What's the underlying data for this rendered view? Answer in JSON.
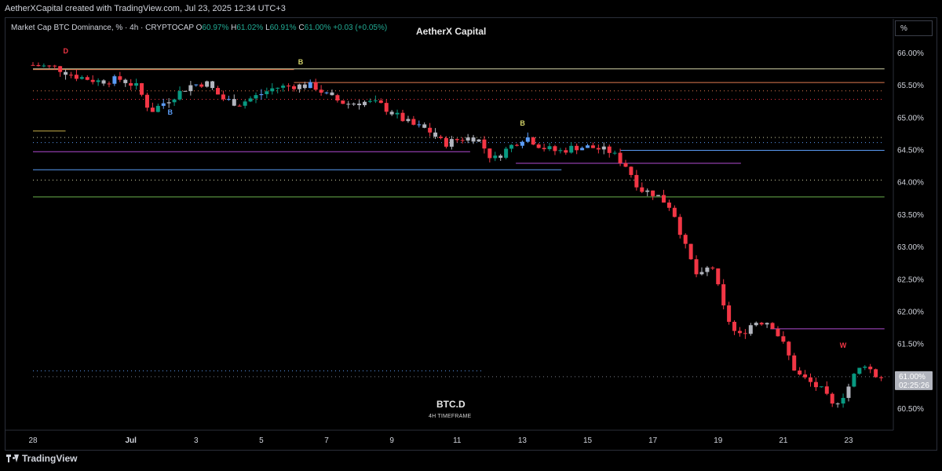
{
  "header": {
    "credit": "AetherXCapital created with TradingView.com, Jul 23, 2025 12:34 UTC+3"
  },
  "legend": {
    "title": "Market Cap BTC Dominance, % · 4h · CRYPTOCAP",
    "o_label": "O",
    "o_value": "60.97%",
    "h_label": "H",
    "h_value": "61.02%",
    "l_label": "L",
    "l_value": "60.91%",
    "c_label": "C",
    "c_value": "61.00%",
    "change": "+0.03 (+0.05%)"
  },
  "brand": "AetherX Capital",
  "unit_button": "%",
  "symbol": "BTC.D",
  "timeframe": "4H TIMEFRAME",
  "footer": {
    "logo": "TradingView"
  },
  "price_tag": {
    "value": "61.00%",
    "countdown": "02:25:26"
  },
  "colors": {
    "up": "#089981",
    "down": "#f23645",
    "neutral": "#b2b5be",
    "blue": "#5b9cf6"
  },
  "chart_data": {
    "type": "candlestick",
    "y_ticks": [
      "66.00%",
      "65.50%",
      "65.00%",
      "64.50%",
      "64.00%",
      "63.50%",
      "63.00%",
      "62.50%",
      "62.00%",
      "61.50%",
      "60.50%"
    ],
    "y_tick_values": [
      66.0,
      65.5,
      65.0,
      64.5,
      64.0,
      63.5,
      63.0,
      62.5,
      62.0,
      61.5,
      60.5
    ],
    "x_ticks": [
      "28",
      "Jul",
      "3",
      "5",
      "7",
      "9",
      "11",
      "13",
      "15",
      "17",
      "19",
      "21",
      "23"
    ],
    "x_tick_days": [
      0,
      3,
      5,
      7,
      9,
      11,
      13,
      15,
      17,
      19,
      21,
      23,
      25
    ],
    "ylim": [
      60.2,
      66.3
    ],
    "xlim_days": [
      0.0,
      26.75
    ],
    "levels": [
      {
        "y": 65.76,
        "x0": 0.0,
        "x1": 26.1,
        "color": "#d4d4a8",
        "style": "solid"
      },
      {
        "y": 65.75,
        "x0": 0.0,
        "x1": 8.0,
        "color": "#e07a4f",
        "style": "solid"
      },
      {
        "y": 65.55,
        "x0": 8.0,
        "x1": 26.1,
        "color": "#e07a4f",
        "style": "solid"
      },
      {
        "y": 65.42,
        "x0": 0.0,
        "x1": 26.1,
        "color": "#e07a4f",
        "style": "dotted"
      },
      {
        "y": 65.29,
        "x0": 0.0,
        "x1": 26.1,
        "color": "#f23645",
        "style": "dotted"
      },
      {
        "y": 64.8,
        "x0": 0.0,
        "x1": 1.0,
        "color": "#c8b04a",
        "style": "solid"
      },
      {
        "y": 64.7,
        "x0": 0.0,
        "x1": 26.1,
        "color": "#d4d4a8",
        "style": "dotted"
      },
      {
        "y": 64.62,
        "x0": 0.0,
        "x1": 26.1,
        "color": "#5b9cf6",
        "style": "dotted"
      },
      {
        "y": 64.5,
        "x0": 18.0,
        "x1": 26.1,
        "color": "#5b9cf6",
        "style": "solid"
      },
      {
        "y": 64.48,
        "x0": 0.0,
        "x1": 13.4,
        "color": "#b04bd1",
        "style": "solid"
      },
      {
        "y": 64.3,
        "x0": 14.8,
        "x1": 21.7,
        "color": "#b04bd1",
        "style": "solid"
      },
      {
        "y": 64.2,
        "x0": 0.0,
        "x1": 16.2,
        "color": "#5b9cf6",
        "style": "solid"
      },
      {
        "y": 64.04,
        "x0": 0.0,
        "x1": 26.1,
        "color": "#d4d4a8",
        "style": "dotted"
      },
      {
        "y": 63.78,
        "x0": 0.0,
        "x1": 26.1,
        "color": "#6ab04c",
        "style": "solid"
      },
      {
        "y": 61.74,
        "x0": 22.6,
        "x1": 26.1,
        "color": "#b04bd1",
        "style": "solid"
      },
      {
        "y": 61.09,
        "x0": 0.0,
        "x1": 13.8,
        "color": "#5b9cf6",
        "style": "dotted"
      },
      {
        "y": 61.0,
        "x0": 0.0,
        "x1": 26.75,
        "color": "#787b86",
        "style": "dotted"
      }
    ],
    "candles_anchor": [
      [
        0.0,
        65.82
      ],
      [
        0.7,
        65.78
      ],
      [
        1.3,
        65.65
      ],
      [
        2.0,
        65.57
      ],
      [
        2.7,
        65.6
      ],
      [
        3.2,
        65.48
      ],
      [
        3.6,
        65.1
      ],
      [
        4.2,
        65.3
      ],
      [
        4.8,
        65.5
      ],
      [
        5.3,
        65.55
      ],
      [
        5.8,
        65.3
      ],
      [
        6.3,
        65.22
      ],
      [
        6.9,
        65.35
      ],
      [
        7.4,
        65.47
      ],
      [
        8.0,
        65.5
      ],
      [
        8.6,
        65.5
      ],
      [
        9.1,
        65.32
      ],
      [
        9.6,
        65.22
      ],
      [
        10.1,
        65.25
      ],
      [
        10.6,
        65.22
      ],
      [
        11.1,
        65.05
      ],
      [
        11.6,
        64.9
      ],
      [
        12.1,
        64.82
      ],
      [
        12.6,
        64.6
      ],
      [
        13.1,
        64.68
      ],
      [
        13.6,
        64.7
      ],
      [
        14.1,
        64.35
      ],
      [
        14.6,
        64.55
      ],
      [
        15.1,
        64.72
      ],
      [
        15.6,
        64.55
      ],
      [
        16.1,
        64.48
      ],
      [
        16.6,
        64.55
      ],
      [
        17.1,
        64.55
      ],
      [
        17.7,
        64.48
      ],
      [
        18.2,
        64.25
      ],
      [
        18.6,
        63.9
      ],
      [
        19.1,
        63.82
      ],
      [
        19.6,
        63.6
      ],
      [
        20.0,
        63.0
      ],
      [
        20.4,
        62.5
      ],
      [
        20.8,
        62.75
      ],
      [
        21.2,
        62.0
      ],
      [
        21.6,
        61.6
      ],
      [
        22.1,
        61.85
      ],
      [
        22.6,
        61.85
      ],
      [
        23.0,
        61.5
      ],
      [
        23.4,
        61.05
      ],
      [
        23.8,
        60.92
      ],
      [
        24.2,
        60.78
      ],
      [
        24.5,
        60.55
      ],
      [
        24.9,
        60.75
      ],
      [
        25.2,
        61.05
      ],
      [
        25.5,
        61.2
      ],
      [
        25.9,
        60.98
      ],
      [
        26.1,
        61.0
      ]
    ],
    "signals": [
      {
        "label": "B",
        "day": 8.2,
        "y": 65.83,
        "color": "#d4d46a"
      },
      {
        "label": "B",
        "day": 15.0,
        "y": 64.88,
        "color": "#d4d46a"
      },
      {
        "label": "B",
        "day": 4.2,
        "y": 65.05,
        "color": "#5b9cf6"
      },
      {
        "label": "D",
        "day": 1.0,
        "y": 66.0,
        "color": "#f23645"
      },
      {
        "label": "W",
        "day": 24.8,
        "y": 61.45,
        "color": "#f23645"
      }
    ]
  }
}
